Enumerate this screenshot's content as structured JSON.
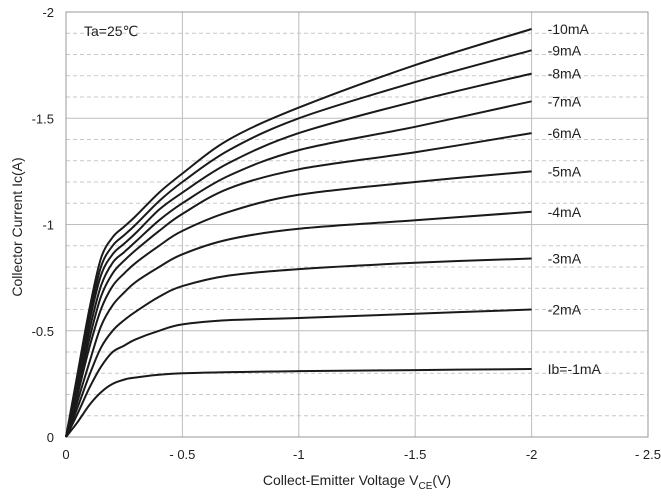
{
  "chart_data": {
    "type": "line",
    "title": "",
    "annotation": "Ta=25℃",
    "xlabel_main": "Collect-Emitter Voltage  V",
    "xlabel_sub": "CE",
    "xlabel_unit": "(V)",
    "ylabel": "Collector  Current   Ic(A)",
    "xlim": [
      0,
      -2.5
    ],
    "ylim": [
      0,
      -2
    ],
    "x_ticks": [
      0,
      -0.5,
      -1,
      -1.5,
      -2,
      -2.5
    ],
    "x_tick_labels": [
      "0",
      "- 0.5",
      "-1",
      "-1.5",
      "-2",
      "- 2.5"
    ],
    "y_ticks": [
      0,
      -0.5,
      -1,
      -1.5,
      -2
    ],
    "y_tick_labels": [
      "0",
      "-0.5",
      "-1",
      "-1.5",
      "-2"
    ],
    "grid": {
      "major": true,
      "minor_dashed": true
    },
    "legend": "labels at line ends (right)",
    "series": [
      {
        "name": "Ib=-1mA",
        "x": [
          0,
          -0.05,
          -0.1,
          -0.15,
          -0.2,
          -0.25,
          -0.3,
          -0.5,
          -1,
          -1.5,
          -2
        ],
        "y": [
          0,
          -0.07,
          -0.15,
          -0.21,
          -0.25,
          -0.27,
          -0.28,
          -0.3,
          -0.31,
          -0.315,
          -0.32
        ]
      },
      {
        "name": "-2mA",
        "x": [
          0,
          -0.05,
          -0.1,
          -0.15,
          -0.2,
          -0.25,
          -0.3,
          -0.4,
          -0.5,
          -0.7,
          -1,
          -1.5,
          -2
        ],
        "y": [
          0,
          -0.11,
          -0.23,
          -0.33,
          -0.4,
          -0.43,
          -0.46,
          -0.5,
          -0.53,
          -0.55,
          -0.56,
          -0.58,
          -0.6
        ]
      },
      {
        "name": "-3mA",
        "x": [
          0,
          -0.05,
          -0.1,
          -0.15,
          -0.2,
          -0.25,
          -0.3,
          -0.4,
          -0.5,
          -0.7,
          -1,
          -1.5,
          -2
        ],
        "y": [
          0,
          -0.14,
          -0.29,
          -0.42,
          -0.5,
          -0.55,
          -0.59,
          -0.66,
          -0.71,
          -0.76,
          -0.79,
          -0.82,
          -0.84
        ]
      },
      {
        "name": "-4mA",
        "x": [
          0,
          -0.05,
          -0.1,
          -0.15,
          -0.2,
          -0.25,
          -0.3,
          -0.4,
          -0.5,
          -0.7,
          -1,
          -1.5,
          -2
        ],
        "y": [
          0,
          -0.17,
          -0.35,
          -0.52,
          -0.62,
          -0.68,
          -0.73,
          -0.8,
          -0.86,
          -0.93,
          -0.98,
          -1.02,
          -1.06
        ]
      },
      {
        "name": "-5mA",
        "x": [
          0,
          -0.05,
          -0.1,
          -0.15,
          -0.2,
          -0.25,
          -0.3,
          -0.4,
          -0.5,
          -0.7,
          -1,
          -1.5,
          -2
        ],
        "y": [
          0,
          -0.2,
          -0.42,
          -0.6,
          -0.71,
          -0.77,
          -0.82,
          -0.9,
          -0.97,
          -1.06,
          -1.14,
          -1.2,
          -1.25
        ]
      },
      {
        "name": "-6mA",
        "x": [
          0,
          -0.05,
          -0.1,
          -0.15,
          -0.2,
          -0.25,
          -0.3,
          -0.4,
          -0.5,
          -0.7,
          -1,
          -1.5,
          -2
        ],
        "y": [
          0,
          -0.22,
          -0.46,
          -0.66,
          -0.77,
          -0.83,
          -0.88,
          -0.97,
          -1.05,
          -1.17,
          -1.26,
          -1.34,
          -1.43
        ]
      },
      {
        "name": "-7mA",
        "x": [
          0,
          -0.05,
          -0.1,
          -0.15,
          -0.2,
          -0.25,
          -0.3,
          -0.4,
          -0.5,
          -0.7,
          -1,
          -1.5,
          -2
        ],
        "y": [
          0,
          -0.24,
          -0.5,
          -0.71,
          -0.82,
          -0.87,
          -0.92,
          -1.02,
          -1.1,
          -1.23,
          -1.35,
          -1.46,
          -1.58
        ]
      },
      {
        "name": "-8mA",
        "x": [
          0,
          -0.05,
          -0.1,
          -0.15,
          -0.2,
          -0.25,
          -0.3,
          -0.4,
          -0.5,
          -0.7,
          -1,
          -1.5,
          -2
        ],
        "y": [
          0,
          -0.26,
          -0.54,
          -0.76,
          -0.86,
          -0.91,
          -0.96,
          -1.07,
          -1.15,
          -1.29,
          -1.43,
          -1.58,
          -1.71
        ]
      },
      {
        "name": "-9mA",
        "x": [
          0,
          -0.05,
          -0.1,
          -0.15,
          -0.2,
          -0.25,
          -0.3,
          -0.4,
          -0.5,
          -0.7,
          -1,
          -1.5,
          -2
        ],
        "y": [
          0,
          -0.28,
          -0.57,
          -0.8,
          -0.9,
          -0.95,
          -1.0,
          -1.11,
          -1.2,
          -1.35,
          -1.5,
          -1.67,
          -1.82
        ]
      },
      {
        "name": "-10mA",
        "x": [
          0,
          -0.05,
          -0.1,
          -0.15,
          -0.2,
          -0.25,
          -0.3,
          -0.4,
          -0.5,
          -0.7,
          -1,
          -1.5,
          -2
        ],
        "y": [
          0,
          -0.3,
          -0.6,
          -0.84,
          -0.94,
          -0.99,
          -1.04,
          -1.15,
          -1.24,
          -1.4,
          -1.55,
          -1.75,
          -1.92
        ]
      }
    ],
    "colors": {
      "line": "#1a1a1a",
      "grid_major": "#bdbdbd",
      "grid_minor": "#c8c8c8",
      "text": "#222222"
    }
  }
}
